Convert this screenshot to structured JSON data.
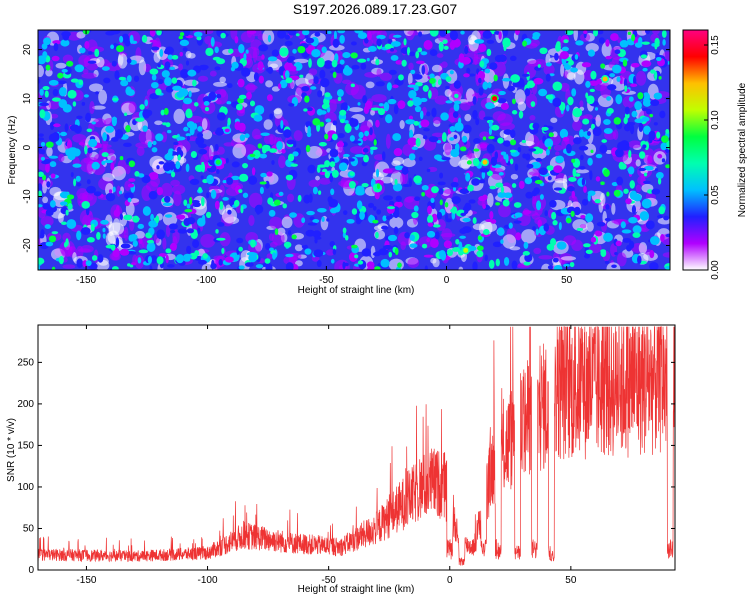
{
  "title": "S197.2026.089.17.23.G07",
  "chart_data": [
    {
      "type": "heatmap",
      "xlabel": "Height of straight line (km)",
      "ylabel": "Frequency (Hz)",
      "xlim": [
        -170,
        93
      ],
      "ylim": [
        -25,
        24
      ],
      "xticks": [
        -150,
        -100,
        -50,
        0,
        50
      ],
      "yticks": [
        -20,
        -10,
        0,
        10,
        20
      ],
      "colorbar": {
        "label": "Normalized spectral amplitude",
        "range": [
          0,
          0.16
        ],
        "ticks": [
          "0.00",
          "0.05",
          "0.10",
          "0.15"
        ],
        "colors": [
          "#ffffff",
          "#b000ff",
          "#2020ff",
          "#00c0ff",
          "#00ffb0",
          "#00ff40",
          "#c0ff00",
          "#ffc000",
          "#ff0000",
          "#ff0080"
        ]
      },
      "hotspots": [
        {
          "x": 20,
          "y": 10,
          "value": 0.15
        },
        {
          "x": 66,
          "y": 14,
          "value": 0.13
        },
        {
          "x": 16,
          "y": -3,
          "value": 0.12
        },
        {
          "x": -95,
          "y": -3,
          "value": 0.09
        },
        {
          "x": 8,
          "y": -21,
          "value": 0.11
        }
      ]
    },
    {
      "type": "line",
      "xlabel": "Height of straight line (km)",
      "ylabel": "SNR (10 * v/v)",
      "xlim": [
        -170,
        93
      ],
      "ylim": [
        0,
        295
      ],
      "xticks": [
        -150,
        -100,
        -50,
        0,
        50
      ],
      "yticks": [
        0,
        50,
        100,
        150,
        200,
        250
      ],
      "color": "#ee3333",
      "envelope": [
        {
          "x": -170,
          "y": 20
        },
        {
          "x": -130,
          "y": 18
        },
        {
          "x": -100,
          "y": 22
        },
        {
          "x": -85,
          "y": 45
        },
        {
          "x": -65,
          "y": 35
        },
        {
          "x": -45,
          "y": 30
        },
        {
          "x": -30,
          "y": 55
        },
        {
          "x": -18,
          "y": 90
        },
        {
          "x": -8,
          "y": 115
        },
        {
          "x": -2,
          "y": 110
        },
        {
          "x": 4,
          "y": 35
        },
        {
          "x": 10,
          "y": 30
        },
        {
          "x": 18,
          "y": 140
        },
        {
          "x": 30,
          "y": 190
        },
        {
          "x": 40,
          "y": 215
        },
        {
          "x": 45,
          "y": 235
        },
        {
          "x": 60,
          "y": 240
        },
        {
          "x": 75,
          "y": 245
        },
        {
          "x": 89,
          "y": 250
        },
        {
          "x": 93,
          "y": 255
        }
      ],
      "dropouts": [
        {
          "x": 0,
          "y": 25
        },
        {
          "x": 5,
          "y": 10
        },
        {
          "x": 14,
          "y": 25
        },
        {
          "x": 20,
          "y": 25
        },
        {
          "x": 28,
          "y": 20
        },
        {
          "x": 35,
          "y": 25
        },
        {
          "x": 42,
          "y": 20
        },
        {
          "x": 91,
          "y": 25
        }
      ]
    }
  ]
}
